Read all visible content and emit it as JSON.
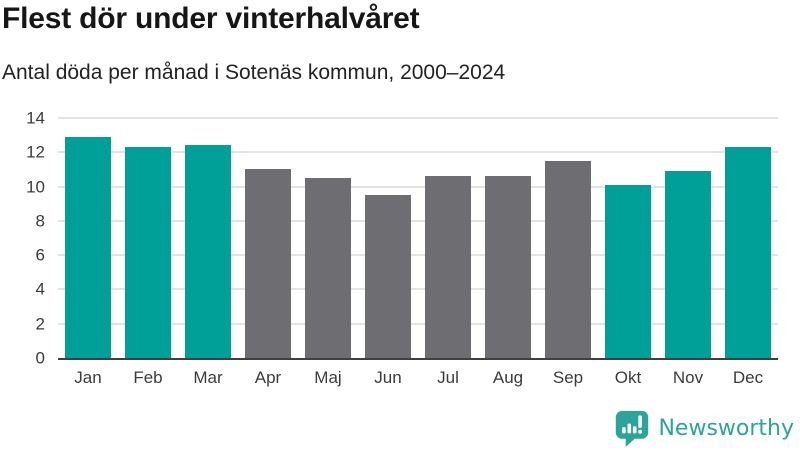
{
  "header": {
    "title": "Flest dör under vinterhalvåret",
    "subtitle": "Antal döda per månad i Sotenäs kommun, 2000–2024"
  },
  "chart_data": {
    "type": "bar",
    "categories": [
      "Jan",
      "Feb",
      "Mar",
      "Apr",
      "Maj",
      "Jun",
      "Jul",
      "Aug",
      "Sep",
      "Okt",
      "Nov",
      "Dec"
    ],
    "values": [
      12.9,
      12.3,
      12.4,
      11.0,
      10.5,
      9.5,
      10.6,
      10.6,
      11.5,
      10.1,
      10.9,
      12.3
    ],
    "bar_color_keys": [
      "winter",
      "winter",
      "winter",
      "summer",
      "summer",
      "summer",
      "summer",
      "summer",
      "summer",
      "winter",
      "winter",
      "winter"
    ],
    "colors": {
      "winter": "#00a099",
      "summer": "#6e6d72"
    },
    "yticks": [
      0,
      2,
      4,
      6,
      8,
      10,
      12,
      14
    ],
    "ylim": [
      0,
      14
    ],
    "grid": true,
    "legend": "none",
    "xlabel": "",
    "ylabel": ""
  },
  "footer": {
    "brand": "Newsworthy",
    "brand_color": "#2da49b",
    "logo_icon": "newsworthy-speech-bubble-chart-icon"
  }
}
